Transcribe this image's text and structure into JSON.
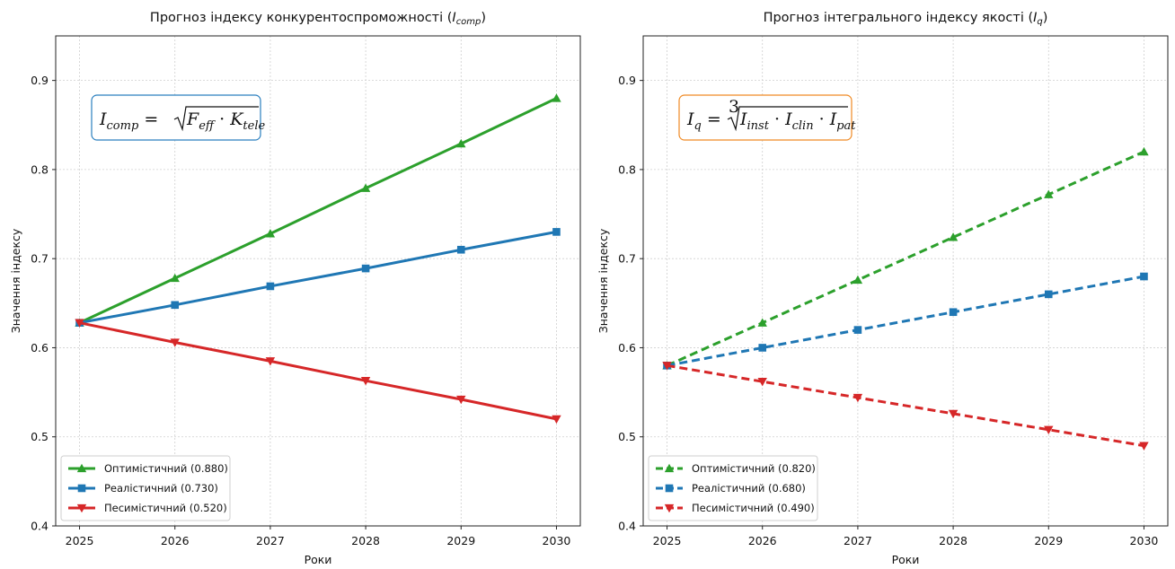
{
  "chart_data": [
    {
      "type": "line",
      "title": "Прогноз індексу конкурентоспроможності (",
      "title_var": "I",
      "title_sub": "comp",
      "title_close": ")",
      "xlabel": "Роки",
      "ylabel": "Значення індексу",
      "x": [
        2025,
        2026,
        2027,
        2028,
        2029,
        2030
      ],
      "xlim": [
        2024.75,
        2030.25
      ],
      "ylim": [
        0.4,
        0.95
      ],
      "yticks": [
        "0.4",
        "0.5",
        "0.6",
        "0.7",
        "0.8",
        "0.9"
      ],
      "line_style": "solid",
      "grid": true,
      "legend_position": "lower-left",
      "formula": {
        "lhs": "I",
        "lhs_sub": "comp",
        "eq": "=",
        "root_index": "",
        "terms": [
          {
            "base": "F",
            "sub": "eff"
          },
          {
            "base": "K",
            "sub": "tele"
          }
        ],
        "border_color": "#2a7fbf"
      },
      "series": [
        {
          "name": "Оптимістичний (0.880)",
          "color": "#2ca02c",
          "marker": "triangle-up-icon",
          "values": [
            0.628,
            0.678,
            0.728,
            0.779,
            0.829,
            0.88
          ]
        },
        {
          "name": "Реалістичний (0.730)",
          "color": "#1f77b4",
          "marker": "square-icon",
          "values": [
            0.628,
            0.648,
            0.669,
            0.689,
            0.71,
            0.73
          ]
        },
        {
          "name": "Песимістичний (0.520)",
          "color": "#d62728",
          "marker": "triangle-down-icon",
          "values": [
            0.628,
            0.606,
            0.585,
            0.563,
            0.542,
            0.52
          ]
        }
      ]
    },
    {
      "type": "line",
      "title": "Прогноз інтегрального індексу якості (",
      "title_var": "I",
      "title_sub": "q",
      "title_close": ")",
      "xlabel": "Роки",
      "ylabel": "Значення індексу",
      "x": [
        2025,
        2026,
        2027,
        2028,
        2029,
        2030
      ],
      "xlim": [
        2024.75,
        2030.25
      ],
      "ylim": [
        0.4,
        0.95
      ],
      "yticks": [
        "0.4",
        "0.5",
        "0.6",
        "0.7",
        "0.8",
        "0.9"
      ],
      "line_style": "dashed",
      "grid": true,
      "legend_position": "lower-left",
      "formula": {
        "lhs": "I",
        "lhs_sub": "q",
        "eq": "=",
        "root_index": "3",
        "terms": [
          {
            "base": "I",
            "sub": "inst"
          },
          {
            "base": "I",
            "sub": "clin"
          },
          {
            "base": "I",
            "sub": "pat"
          }
        ],
        "border_color": "#f08a24"
      },
      "series": [
        {
          "name": "Оптимістичний (0.820)",
          "color": "#2ca02c",
          "marker": "triangle-up-icon",
          "values": [
            0.58,
            0.628,
            0.676,
            0.724,
            0.772,
            0.82
          ]
        },
        {
          "name": "Реалістичний (0.680)",
          "color": "#1f77b4",
          "marker": "square-icon",
          "values": [
            0.58,
            0.6,
            0.62,
            0.64,
            0.66,
            0.68
          ]
        },
        {
          "name": "Песимістичний (0.490)",
          "color": "#d62728",
          "marker": "triangle-down-icon",
          "values": [
            0.58,
            0.562,
            0.544,
            0.526,
            0.508,
            0.49
          ]
        }
      ]
    }
  ]
}
